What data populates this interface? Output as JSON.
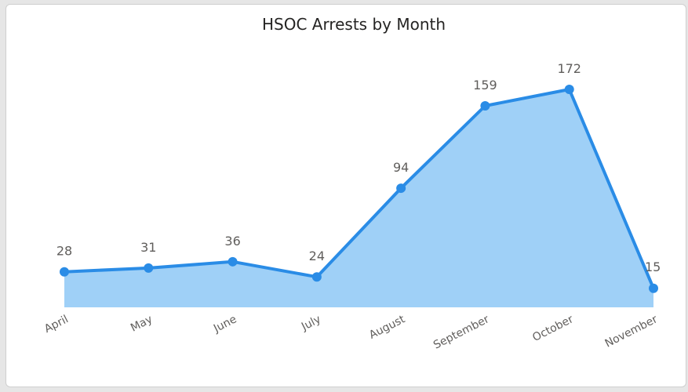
{
  "chart_data": {
    "type": "area",
    "title": "HSOC Arrests by Month",
    "xlabel": "",
    "ylabel": "",
    "categories": [
      "April",
      "May",
      "June",
      "July",
      "August",
      "September",
      "October",
      "November"
    ],
    "series": [
      {
        "values": [
          28,
          31,
          36,
          24,
          94,
          159,
          172,
          15
        ]
      }
    ],
    "data_labels": [
      "28",
      "31",
      "36",
      "24",
      "94",
      "159",
      "172",
      "15"
    ],
    "ylim": [
      0,
      172
    ],
    "grid": false,
    "legend": "none",
    "colors": {
      "line": "#2a8ce6",
      "fill": "#9fd0f7",
      "marker": "#2a8ce6",
      "title": "#252423",
      "label": "#605e5c"
    }
  }
}
